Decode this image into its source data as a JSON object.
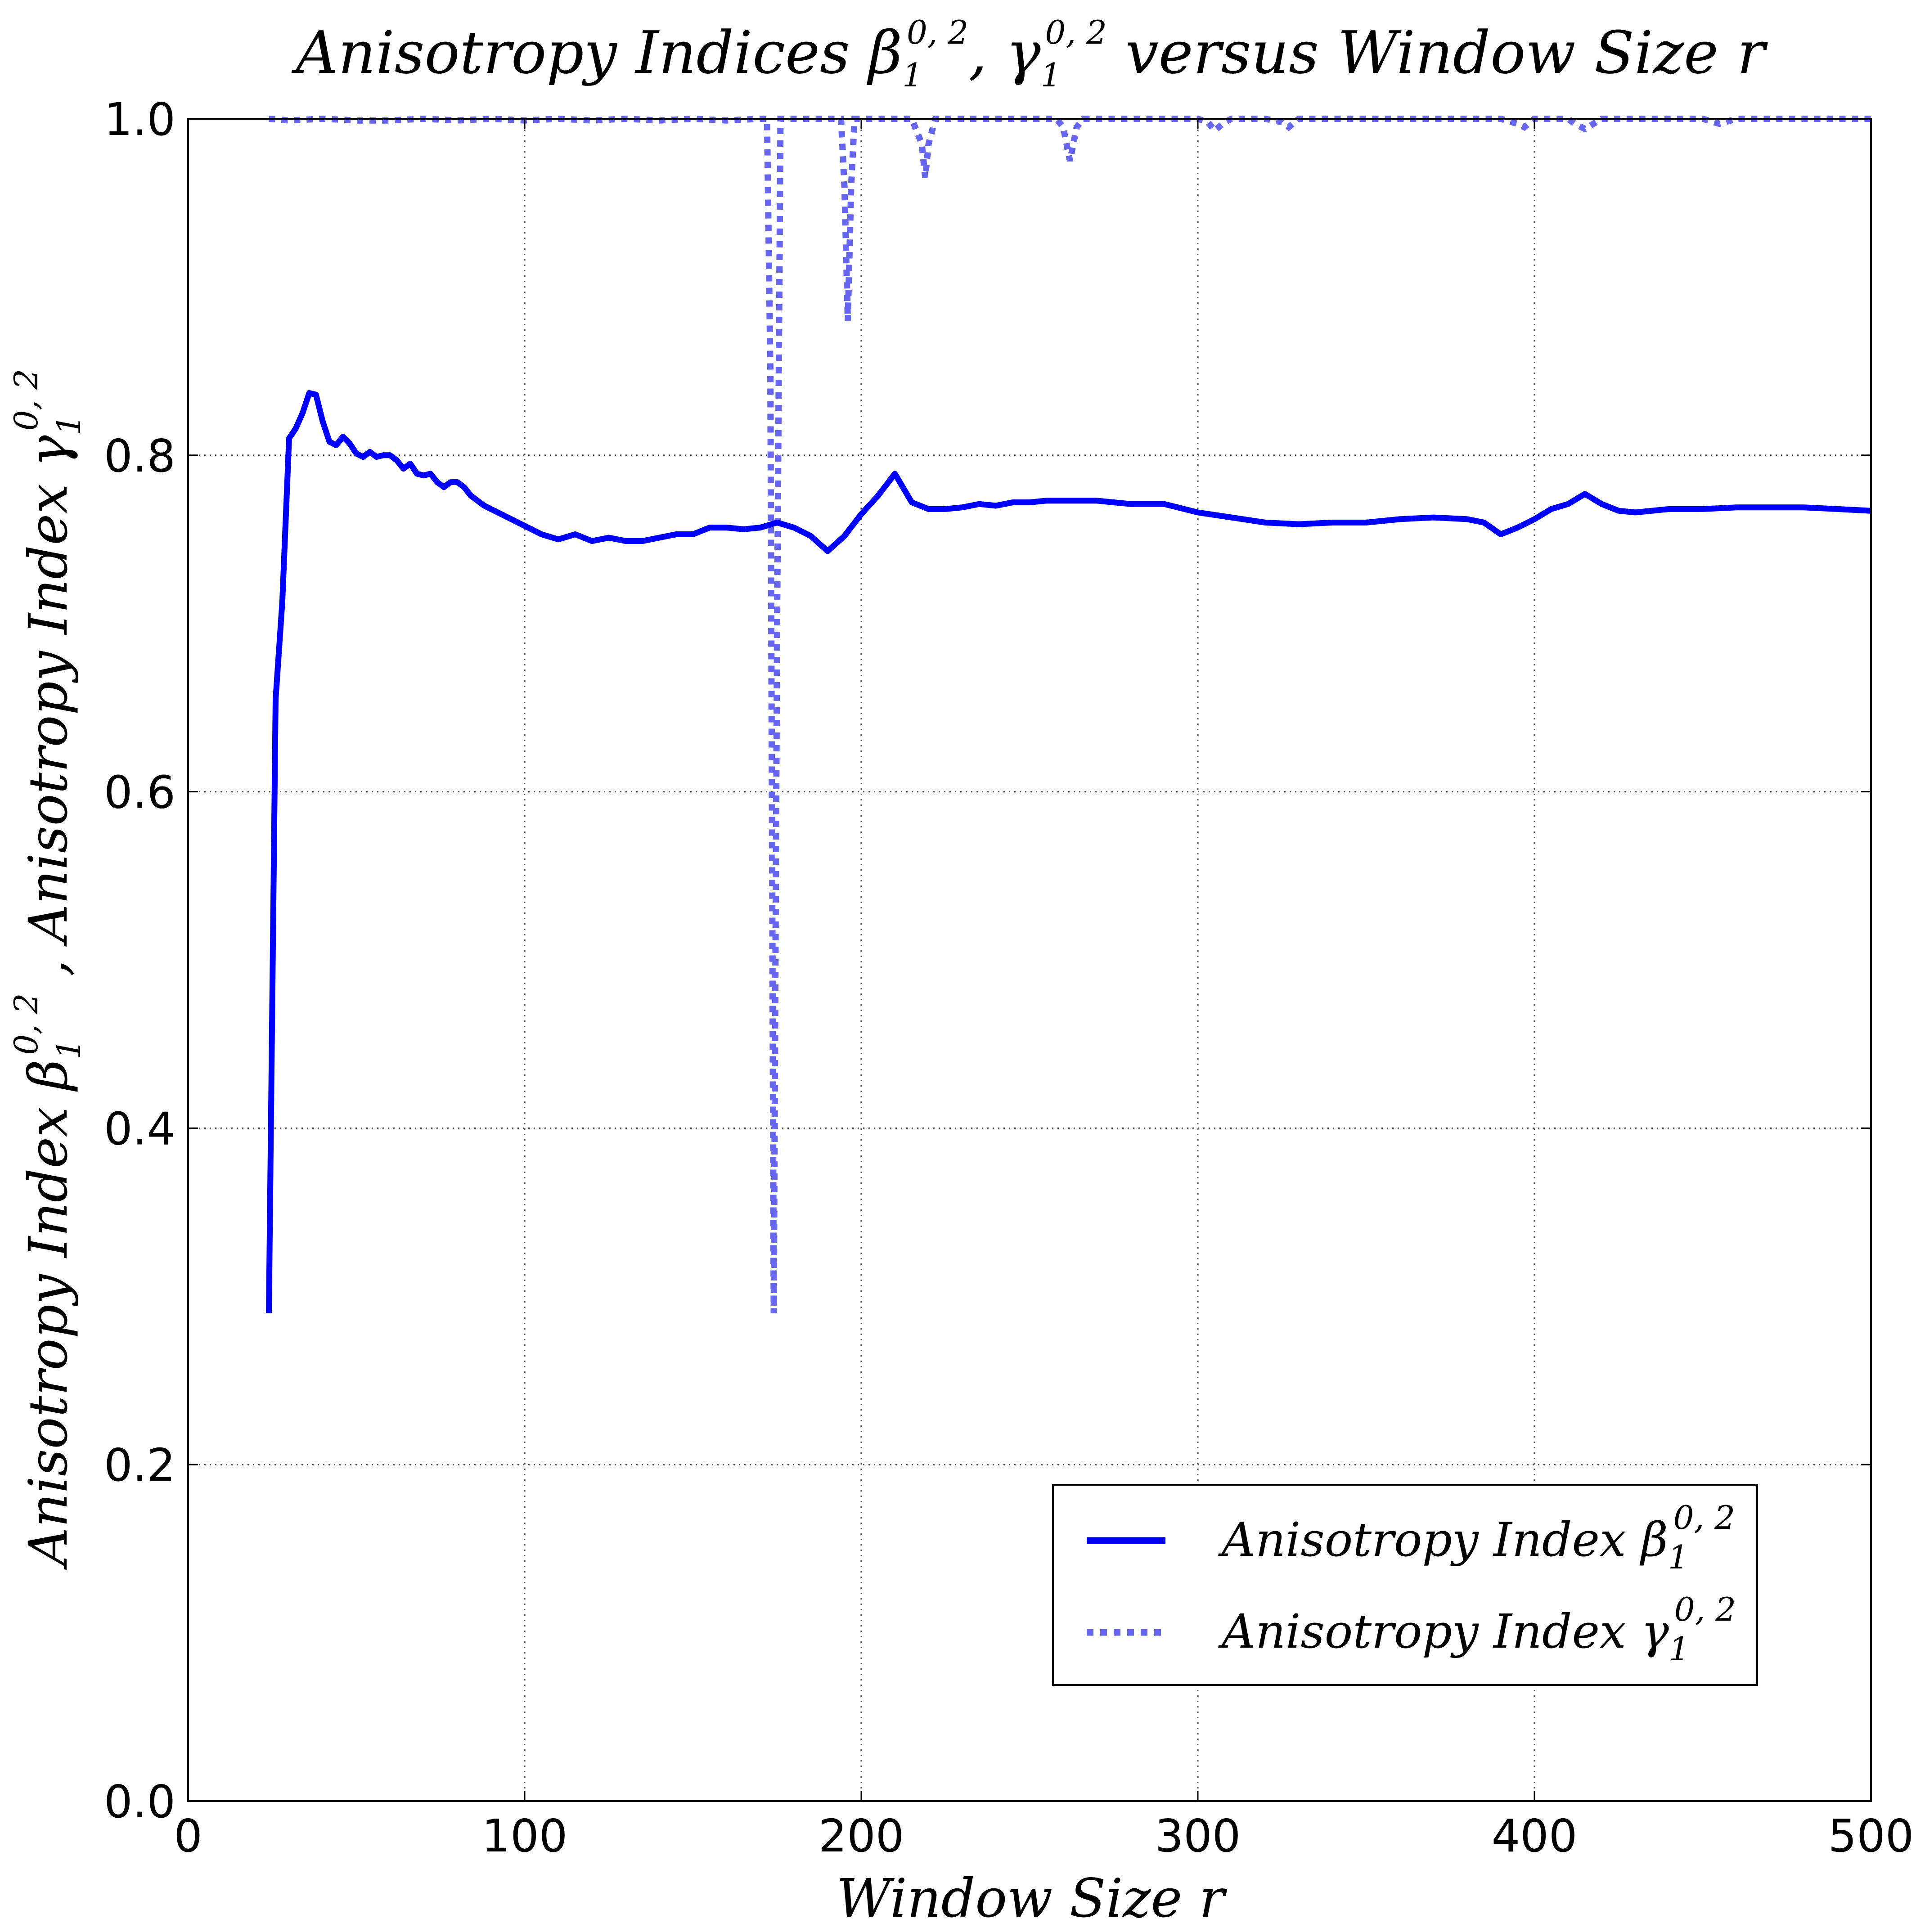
{
  "chart_data": {
    "type": "line",
    "title": {
      "main": "Anisotropy Indices β",
      "sub": "1",
      "sup": "0, 2",
      "mid": ", γ",
      "sub2": "1",
      "sup2": "0, 2",
      "tail": " versus Window Size r"
    },
    "xlabel": "Window Size r",
    "ylabel": {
      "part1": "Anisotropy Index β",
      "sub1": "1",
      "sup1": "0, 2",
      "sep": " ,  ",
      "part2": "Anisotropy Index γ",
      "sub2": "1",
      "sup2": "0, 2"
    },
    "xlim": [
      0,
      500
    ],
    "ylim": [
      0.0,
      1.0
    ],
    "xticks": [
      "0",
      "100",
      "200",
      "300",
      "400",
      "500"
    ],
    "yticks": [
      "0.0",
      "0.2",
      "0.4",
      "0.6",
      "0.8",
      "1.0"
    ],
    "grid": true,
    "legend_position": "lower-right",
    "colors": {
      "beta": "#0000ff",
      "gamma": "#6666ee"
    },
    "series": [
      {
        "name": "Anisotropy Index β",
        "name_sub": "1",
        "name_sup": "0, 2",
        "style": "solid",
        "x": [
          24,
          26,
          28,
          30,
          32,
          34,
          36,
          38,
          40,
          42,
          44,
          46,
          48,
          50,
          52,
          54,
          56,
          58,
          60,
          62,
          64,
          66,
          68,
          70,
          72,
          74,
          76,
          78,
          80,
          82,
          84,
          86,
          88,
          90,
          95,
          100,
          105,
          110,
          115,
          120,
          125,
          130,
          135,
          140,
          145,
          150,
          155,
          160,
          165,
          170,
          175,
          180,
          185,
          190,
          195,
          200,
          205,
          210,
          215,
          220,
          225,
          230,
          235,
          240,
          245,
          250,
          255,
          260,
          265,
          270,
          275,
          280,
          285,
          290,
          300,
          310,
          320,
          330,
          340,
          350,
          360,
          370,
          380,
          385,
          390,
          395,
          400,
          405,
          410,
          415,
          420,
          425,
          430,
          440,
          450,
          460,
          470,
          480,
          490,
          500
        ],
        "y": [
          0.29,
          0.655,
          0.713,
          0.81,
          0.816,
          0.825,
          0.837,
          0.836,
          0.82,
          0.808,
          0.806,
          0.811,
          0.807,
          0.801,
          0.799,
          0.802,
          0.799,
          0.8,
          0.8,
          0.797,
          0.792,
          0.795,
          0.789,
          0.788,
          0.789,
          0.784,
          0.781,
          0.784,
          0.784,
          0.781,
          0.776,
          0.773,
          0.77,
          0.768,
          0.763,
          0.758,
          0.753,
          0.75,
          0.753,
          0.749,
          0.751,
          0.749,
          0.749,
          0.751,
          0.753,
          0.753,
          0.757,
          0.757,
          0.756,
          0.757,
          0.76,
          0.757,
          0.752,
          0.743,
          0.752,
          0.765,
          0.776,
          0.789,
          0.772,
          0.768,
          0.768,
          0.769,
          0.771,
          0.77,
          0.772,
          0.772,
          0.773,
          0.773,
          0.773,
          0.773,
          0.772,
          0.771,
          0.771,
          0.771,
          0.766,
          0.763,
          0.76,
          0.759,
          0.76,
          0.76,
          0.762,
          0.763,
          0.762,
          0.76,
          0.753,
          0.757,
          0.762,
          0.768,
          0.771,
          0.777,
          0.771,
          0.767,
          0.766,
          0.768,
          0.768,
          0.769,
          0.769,
          0.769,
          0.768,
          0.767
        ]
      },
      {
        "name": "Anisotropy Index γ",
        "name_sub": "1",
        "name_sup": "0, 2",
        "style": "dotted",
        "x": [
          24,
          30,
          40,
          50,
          60,
          70,
          80,
          90,
          100,
          110,
          120,
          130,
          140,
          150,
          160,
          170,
          172,
          173,
          174,
          175,
          176,
          178,
          185,
          190,
          192,
          194,
          195,
          196,
          197,
          198,
          200,
          205,
          210,
          215,
          218,
          219,
          220,
          222,
          225,
          230,
          240,
          250,
          255,
          258,
          260,
          262,
          264,
          266,
          270,
          280,
          290,
          300,
          303,
          305,
          308,
          310,
          320,
          325,
          327,
          330,
          340,
          350,
          360,
          370,
          380,
          390,
          395,
          397,
          400,
          410,
          412,
          415,
          420,
          430,
          440,
          450,
          455,
          460,
          470,
          480,
          490,
          500
        ],
        "y": [
          1.0,
          0.999,
          1.0,
          0.999,
          0.999,
          1.0,
          0.999,
          1.0,
          0.999,
          1.0,
          0.999,
          1.0,
          0.999,
          1.0,
          0.999,
          1.0,
          1.0,
          0.85,
          0.29,
          0.7,
          1.0,
          1.0,
          1.0,
          1.0,
          1.0,
          1.0,
          0.96,
          0.88,
          0.96,
          1.0,
          1.0,
          1.0,
          1.0,
          1.0,
          0.985,
          0.965,
          0.985,
          1.0,
          1.0,
          1.0,
          1.0,
          1.0,
          1.0,
          1.0,
          0.995,
          0.975,
          0.995,
          1.0,
          1.0,
          1.0,
          1.0,
          1.0,
          0.998,
          0.993,
          0.998,
          1.0,
          1.0,
          0.998,
          0.995,
          1.0,
          1.0,
          1.0,
          1.0,
          1.0,
          1.0,
          1.0,
          0.997,
          0.995,
          1.0,
          1.0,
          0.997,
          0.994,
          1.0,
          1.0,
          1.0,
          1.0,
          0.997,
          1.0,
          1.0,
          1.0,
          1.0,
          1.0
        ]
      }
    ]
  }
}
